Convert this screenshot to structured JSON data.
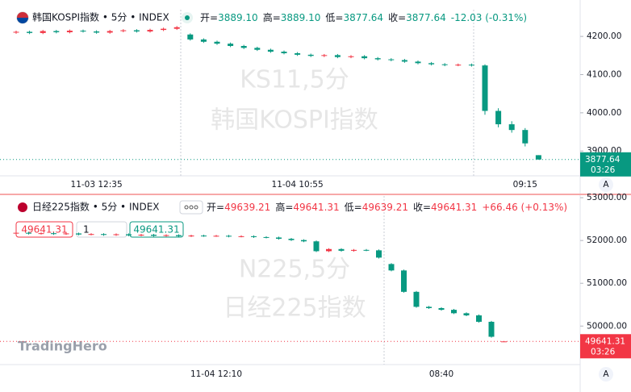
{
  "brand": "TradingHero",
  "chart_data": [
    {
      "type": "candlestick",
      "title": "韩国KOSPI指数 • 5分 • INDEX",
      "watermark": [
        "KS11,5分",
        "韩国KOSPI指数"
      ],
      "ohlc_legend": [
        {
          "key": "开=",
          "value": "3889.10"
        },
        {
          "key": "高=",
          "value": "3889.10"
        },
        {
          "key": "低=",
          "value": "3877.64"
        },
        {
          "key": "收=",
          "value": "3877.64"
        }
      ],
      "change_label": "-12.03 (-0.31%)",
      "up_color": "#f23645",
      "down_color": "#089981",
      "categories": [
        null,
        null,
        null,
        null,
        null,
        null,
        "11-03 12:35",
        null,
        null,
        null,
        null,
        null,
        null,
        null,
        null,
        null,
        null,
        null,
        null,
        null,
        null,
        "11-04 10:55",
        null,
        null,
        null,
        null,
        null,
        null,
        null,
        null,
        null,
        null,
        null,
        null,
        null,
        null,
        null,
        null,
        "09:15",
        null
      ],
      "open": [
        4210,
        4212,
        4209,
        4214,
        4211,
        4215,
        4213,
        4210,
        4214,
        4216,
        4213,
        4217,
        4220,
        4205,
        4192,
        4186,
        4181,
        4175,
        4170,
        4165,
        4160,
        4156,
        4152,
        4149,
        4151,
        4146,
        4148,
        4143,
        4140,
        4138,
        4134,
        4130,
        4127,
        4125,
        4126,
        4124,
        4005,
        3970,
        3955,
        3889.1
      ],
      "high": [
        4215,
        4215,
        4217,
        4217,
        4218,
        4218,
        4216,
        4217,
        4219,
        4219,
        4220,
        4223,
        4227,
        4208,
        4195,
        4189,
        4184,
        4178,
        4173,
        4168,
        4163,
        4159,
        4155,
        4154,
        4154,
        4151,
        4151,
        4146,
        4143,
        4141,
        4137,
        4133,
        4130,
        4129,
        4129,
        4127,
        4012,
        3978,
        3960,
        3889.1
      ],
      "low": [
        4207,
        4206,
        4206,
        4208,
        4208,
        4210,
        4207,
        4207,
        4211,
        4210,
        4210,
        4214,
        4217,
        4189,
        4183,
        4178,
        4172,
        4167,
        4162,
        4157,
        4153,
        4149,
        4146,
        4146,
        4143,
        4143,
        4140,
        4137,
        4135,
        4131,
        4127,
        4124,
        4122,
        4122,
        4121,
        3995,
        3962,
        3948,
        3912,
        3877.64
      ],
      "close": [
        4212,
        4209,
        4214,
        4211,
        4215,
        4213,
        4210,
        4214,
        4216,
        4213,
        4217,
        4220,
        4224,
        4192,
        4186,
        4181,
        4175,
        4170,
        4165,
        4160,
        4156,
        4152,
        4149,
        4151,
        4146,
        4148,
        4143,
        4140,
        4138,
        4134,
        4130,
        4127,
        4125,
        4126,
        4124,
        4005,
        3970,
        3955,
        3920,
        3877.64
      ],
      "ylim": [
        3835,
        4270
      ],
      "yticks": [
        {
          "value": 4200,
          "label": "4200.00"
        },
        {
          "value": 4100,
          "label": "4100.00"
        },
        {
          "value": 4000,
          "label": "4000.00"
        },
        {
          "value": 3900,
          "label": "3900.00"
        }
      ],
      "last_price_label": "3877.64",
      "countdown": "03:26",
      "axis_button": "A"
    },
    {
      "type": "candlestick",
      "title": "日经225指数 • 5分 • INDEX",
      "watermark": [
        "N225,5分",
        "日经225指数"
      ],
      "ohlc_legend": [
        {
          "key": "开=",
          "value": "49639.21"
        },
        {
          "key": "高=",
          "value": "49641.31"
        },
        {
          "key": "低=",
          "value": "49639.21"
        },
        {
          "key": "收=",
          "value": "49641.31"
        }
      ],
      "change_label": "+66.46 (+0.13%)",
      "up_color": "#f23645",
      "down_color": "#089981",
      "order_box": {
        "sell": "49641.31",
        "qty": "1",
        "buy": "49641.31"
      },
      "categories": [
        null,
        null,
        null,
        null,
        null,
        null,
        null,
        null,
        null,
        null,
        null,
        null,
        null,
        null,
        null,
        null,
        "11-04 12:10",
        null,
        null,
        null,
        null,
        null,
        null,
        null,
        null,
        null,
        null,
        null,
        null,
        null,
        null,
        null,
        null,
        null,
        "08:40",
        null,
        null,
        null,
        null,
        null
      ],
      "open": [
        52170,
        52180,
        52160,
        52170,
        52150,
        52165,
        52140,
        52150,
        52130,
        52145,
        52120,
        52135,
        52110,
        52125,
        52100,
        52115,
        52105,
        52110,
        52095,
        52100,
        52080,
        52070,
        52040,
        52010,
        51980,
        51750,
        51800,
        51760,
        51780,
        51770,
        51450,
        51300,
        50800,
        50450,
        50420,
        50380,
        50300,
        50250,
        50100,
        49639.21
      ],
      "high": [
        52190,
        52200,
        52190,
        52190,
        52185,
        52185,
        52170,
        52170,
        52165,
        52165,
        52155,
        52155,
        52145,
        52145,
        52135,
        52135,
        52130,
        52130,
        52120,
        52120,
        52100,
        52090,
        52060,
        52030,
        52000,
        51820,
        51820,
        51800,
        51800,
        51790,
        51470,
        51320,
        50820,
        50470,
        50440,
        50400,
        50320,
        50270,
        50120,
        49641.31
      ],
      "low": [
        52150,
        52140,
        52140,
        52130,
        52130,
        52120,
        52120,
        52110,
        52110,
        52100,
        52100,
        52090,
        52090,
        52080,
        52080,
        52085,
        52085,
        52075,
        52075,
        52060,
        52050,
        52020,
        51990,
        51960,
        51730,
        51730,
        51740,
        51740,
        51750,
        51580,
        51280,
        50780,
        50430,
        50400,
        50360,
        50280,
        50230,
        50080,
        49730,
        49639.21
      ],
      "close": [
        52180,
        52160,
        52170,
        52150,
        52165,
        52140,
        52150,
        52130,
        52145,
        52120,
        52135,
        52110,
        52125,
        52100,
        52115,
        52105,
        52110,
        52095,
        52100,
        52080,
        52070,
        52040,
        52010,
        51980,
        51750,
        51800,
        51760,
        51780,
        51770,
        51600,
        51300,
        50800,
        50450,
        50420,
        50380,
        50300,
        50250,
        50100,
        49750,
        49641.31
      ],
      "ylim": [
        49100,
        53040
      ],
      "yticks": [
        {
          "value": 53000,
          "label": "53000.00"
        },
        {
          "value": 52000,
          "label": "52000.00"
        },
        {
          "value": 51000,
          "label": "51000.00"
        },
        {
          "value": 50000,
          "label": "50000.00"
        }
      ],
      "last_price_label": "49641.31",
      "countdown": "03:26",
      "axis_button": "A"
    }
  ]
}
